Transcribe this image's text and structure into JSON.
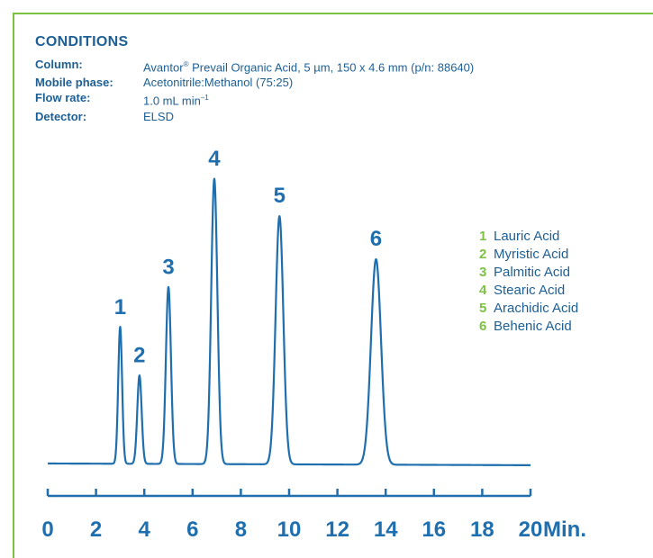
{
  "colors": {
    "accent": "#7cc242",
    "trace": "#1f6fae",
    "text": "#1d5f95"
  },
  "conditions": {
    "heading": "CONDITIONS",
    "column_label": "Column:",
    "column_value_pre": "Avantor",
    "column_value_sup": "®",
    "column_value_post": " Prevail Organic Acid, 5 µm, 150 x 4.6 mm (p/n: 88640)",
    "mobile_label": "Mobile phase:",
    "mobile_value": "Acetonitrile:Methanol (75:25)",
    "flow_label": "Flow rate:",
    "flow_value_pre": "1.0 mL min",
    "flow_value_sup": "–1",
    "detector_label": "Detector:",
    "detector_value": "ELSD"
  },
  "chart_data": {
    "type": "line",
    "xlabel": "Min.",
    "xlim": [
      0,
      20
    ],
    "x_ticks": [
      0,
      2,
      4,
      6,
      8,
      10,
      12,
      14,
      16,
      18,
      20
    ],
    "peaks": [
      {
        "label": "1",
        "name": "Lauric Acid",
        "retention_time": 3.0,
        "relative_height": 0.48
      },
      {
        "label": "2",
        "name": "Myristic Acid",
        "retention_time": 3.8,
        "relative_height": 0.31
      },
      {
        "label": "3",
        "name": "Palmitic Acid",
        "retention_time": 5.0,
        "relative_height": 0.62
      },
      {
        "label": "4",
        "name": "Stearic Acid",
        "retention_time": 6.9,
        "relative_height": 1.0
      },
      {
        "label": "5",
        "name": "Arachidic Acid",
        "retention_time": 9.6,
        "relative_height": 0.87
      },
      {
        "label": "6",
        "name": "Behenic Acid",
        "retention_time": 13.6,
        "relative_height": 0.72
      }
    ]
  }
}
